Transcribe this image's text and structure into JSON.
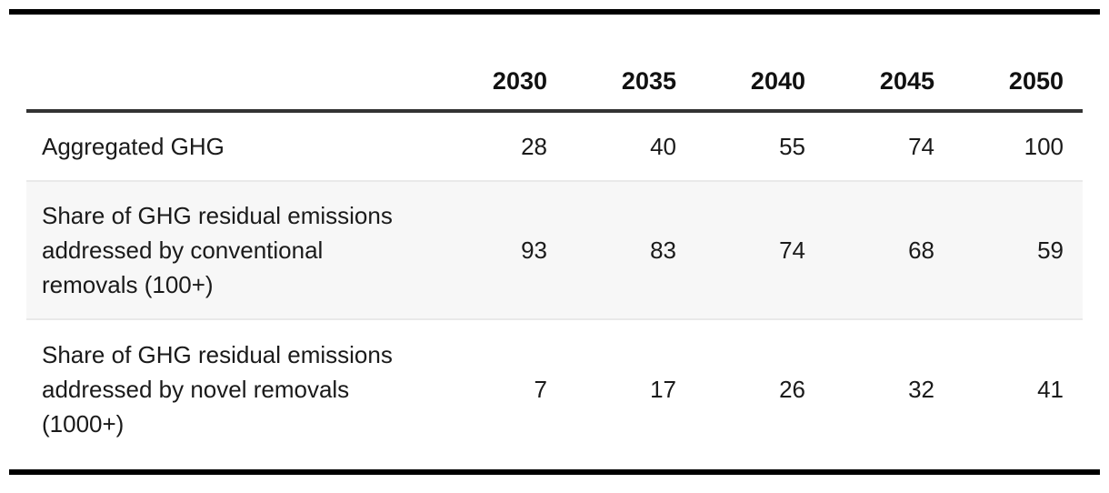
{
  "table": {
    "columns": [
      "2030",
      "2035",
      "2040",
      "2045",
      "2050"
    ],
    "rows": [
      {
        "label": "Aggregated GHG",
        "values": [
          "28",
          "40",
          "55",
          "74",
          "100"
        ]
      },
      {
        "label": "Share of GHG residual emissions\naddressed by conventional\nremovals (100+)",
        "values": [
          "93",
          "83",
          "74",
          "68",
          "59"
        ]
      },
      {
        "label": "Share of GHG residual emissions\naddressed by novel removals\n(1000+)",
        "values": [
          "7",
          "17",
          "26",
          "32",
          "41"
        ]
      }
    ]
  },
  "chart_data": {
    "type": "table",
    "categories": [
      "2030",
      "2035",
      "2040",
      "2045",
      "2050"
    ],
    "series": [
      {
        "name": "Aggregated GHG",
        "values": [
          28,
          40,
          55,
          74,
          100
        ]
      },
      {
        "name": "Share of GHG residual emissions addressed by conventional removals (100+)",
        "values": [
          93,
          83,
          74,
          68,
          59
        ]
      },
      {
        "name": "Share of GHG residual emissions addressed by novel removals (1000+)",
        "values": [
          7,
          17,
          26,
          32,
          41
        ]
      }
    ]
  },
  "theme": {
    "background": "#ffffff",
    "text_color": "#1a1a1a",
    "header_text_color": "#111111",
    "thick_rule_color": "#000000",
    "header_rule_color": "#333333",
    "divider_color": "#e9e9e9",
    "stripe_color": "#f7f7f7"
  }
}
